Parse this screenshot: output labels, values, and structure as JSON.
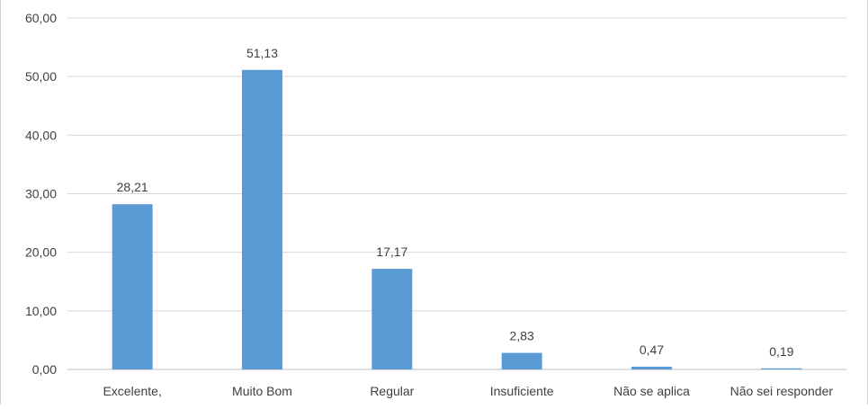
{
  "chart_data": {
    "type": "bar",
    "title": "",
    "xlabel": "",
    "ylabel": "",
    "categories": [
      "Excelente,",
      "Muito Bom",
      "Regular",
      "Insuficiente",
      "Não se aplica",
      "Não sei responder"
    ],
    "values": [
      28.21,
      51.13,
      17.17,
      2.83,
      0.47,
      0.19
    ],
    "value_labels": [
      "28,21",
      "51,13",
      "17,17",
      "2,83",
      "0,47",
      "0,19"
    ],
    "ylim": [
      0,
      60
    ],
    "yticks": [
      0,
      10,
      20,
      30,
      40,
      50,
      60
    ],
    "ytick_labels": [
      "0,00",
      "10,00",
      "20,00",
      "30,00",
      "40,00",
      "50,00",
      "60,00"
    ],
    "grid": true,
    "legend": "none",
    "colors": {
      "bar": "#5b9bd5",
      "grid": "#d9d9d9",
      "axis": "#bfbfbf",
      "text": "#404040"
    }
  }
}
